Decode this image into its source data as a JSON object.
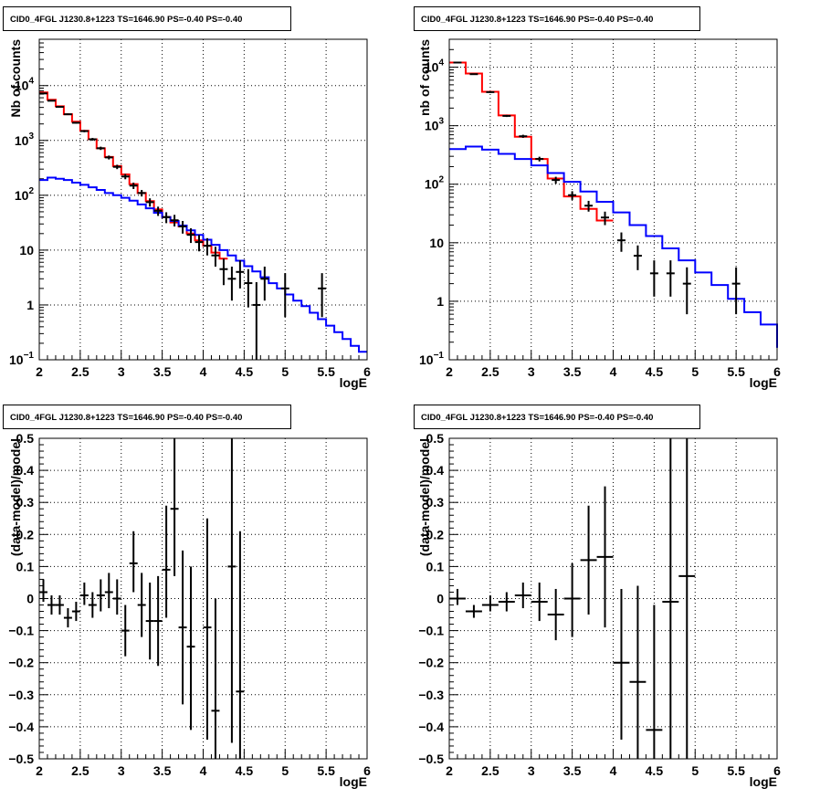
{
  "chart_data": [
    {
      "type": "line",
      "title": "CID0_4FGL J1230.8+1223 TS=1646.90 PS=-0.40 PS=-0.40",
      "xlabel": "logE",
      "ylabel": "Nb of counts",
      "xlim": [
        2,
        6
      ],
      "ylim": [
        0.1,
        70000
      ],
      "ylog": true,
      "grid": true,
      "x_ticks": [
        "2",
        "2.5",
        "3",
        "3.5",
        "4",
        "4.5",
        "5",
        "5.5",
        "6"
      ],
      "y_ticks": [
        {
          "v": 0.1,
          "base": "10",
          "exp": "−1"
        },
        {
          "v": 1,
          "label": "1"
        },
        {
          "v": 10,
          "label": "10"
        },
        {
          "v": 100,
          "base": "10",
          "exp": "2"
        },
        {
          "v": 1000,
          "base": "10",
          "exp": "3"
        },
        {
          "v": 10000,
          "base": "10",
          "exp": "4"
        }
      ],
      "series": [
        {
          "color": "#ff0000",
          "style": "step",
          "edges": [
            2.0,
            2.1,
            2.2,
            2.3,
            2.4,
            2.5,
            2.6,
            2.7,
            2.8,
            2.9,
            3.0,
            3.1,
            3.2,
            3.3,
            3.4,
            3.5,
            3.6,
            3.7,
            3.8,
            3.9,
            4.0,
            4.1,
            4.2,
            4.3
          ],
          "values": [
            7500,
            5500,
            4200,
            3000,
            2200,
            1500,
            1050,
            720,
            500,
            340,
            240,
            160,
            110,
            78,
            55,
            40,
            32,
            27,
            20,
            15,
            12,
            9,
            7
          ]
        },
        {
          "color": "#0000ff",
          "style": "step",
          "edges": [
            2.0,
            2.1,
            2.2,
            2.3,
            2.4,
            2.5,
            2.6,
            2.7,
            2.8,
            2.9,
            3.0,
            3.1,
            3.2,
            3.3,
            3.4,
            3.5,
            3.6,
            3.7,
            3.8,
            3.9,
            4.0,
            4.1,
            4.2,
            4.3,
            4.4,
            4.5,
            4.6,
            4.7,
            4.8,
            4.9,
            5.0,
            5.1,
            5.2,
            5.3,
            5.4,
            5.5,
            5.6,
            5.7,
            5.8,
            5.9,
            6.0
          ],
          "values": [
            190,
            210,
            200,
            190,
            170,
            155,
            140,
            125,
            110,
            100,
            90,
            80,
            68,
            58,
            48,
            40,
            34,
            28,
            23,
            19,
            15.5,
            12.5,
            10,
            8,
            6.4,
            5.1,
            4.1,
            3.2,
            2.5,
            2.0,
            1.55,
            1.2,
            0.95,
            0.72,
            0.55,
            0.42,
            0.32,
            0.24,
            0.18,
            0.14
          ]
        },
        {
          "color": "#000000",
          "style": "points",
          "points": [
            {
              "x": 2.05,
              "y": 7200,
              "lo": 7050,
              "hi": 7350
            },
            {
              "x": 2.15,
              "y": 5300,
              "lo": 5180,
              "hi": 5420
            },
            {
              "x": 2.25,
              "y": 4100,
              "lo": 3990,
              "hi": 4210
            },
            {
              "x": 2.35,
              "y": 3000,
              "lo": 2900,
              "hi": 3100
            },
            {
              "x": 2.45,
              "y": 2100,
              "lo": 2020,
              "hi": 2180
            },
            {
              "x": 2.55,
              "y": 1480,
              "lo": 1410,
              "hi": 1550
            },
            {
              "x": 2.65,
              "y": 1050,
              "lo": 990,
              "hi": 1110
            },
            {
              "x": 2.75,
              "y": 720,
              "lo": 670,
              "hi": 770
            },
            {
              "x": 2.85,
              "y": 490,
              "lo": 450,
              "hi": 530
            },
            {
              "x": 2.95,
              "y": 330,
              "lo": 300,
              "hi": 360
            },
            {
              "x": 3.05,
              "y": 220,
              "lo": 196,
              "hi": 244
            },
            {
              "x": 3.15,
              "y": 150,
              "lo": 130,
              "hi": 170
            },
            {
              "x": 3.25,
              "y": 110,
              "lo": 95,
              "hi": 125
            },
            {
              "x": 3.35,
              "y": 75,
              "lo": 62,
              "hi": 88
            },
            {
              "x": 3.45,
              "y": 52,
              "lo": 42,
              "hi": 62
            },
            {
              "x": 3.55,
              "y": 40,
              "lo": 31,
              "hi": 49
            },
            {
              "x": 3.65,
              "y": 35,
              "lo": 27,
              "hi": 44
            },
            {
              "x": 3.75,
              "y": 27,
              "lo": 20,
              "hi": 34
            },
            {
              "x": 3.85,
              "y": 19,
              "lo": 13.5,
              "hi": 25
            },
            {
              "x": 3.95,
              "y": 14,
              "lo": 9.5,
              "hi": 19
            },
            {
              "x": 4.05,
              "y": 12,
              "lo": 8,
              "hi": 16.5
            },
            {
              "x": 4.15,
              "y": 8,
              "lo": 5,
              "hi": 11.5
            },
            {
              "x": 4.25,
              "y": 4.5,
              "lo": 2.3,
              "hi": 7
            },
            {
              "x": 4.35,
              "y": 3,
              "lo": 1.2,
              "hi": 5
            },
            {
              "x": 4.45,
              "y": 4,
              "lo": 2,
              "hi": 6.5
            },
            {
              "x": 4.55,
              "y": 2.5,
              "lo": 0.9,
              "hi": 4.5
            },
            {
              "x": 4.65,
              "y": 1,
              "lo": 0.1,
              "hi": 2.6
            },
            {
              "x": 4.75,
              "y": 3,
              "lo": 1.2,
              "hi": 5
            },
            {
              "x": 5.0,
              "y": 2,
              "lo": 0.6,
              "hi": 3.8
            },
            {
              "x": 5.45,
              "y": 2,
              "lo": 0.6,
              "hi": 3.8
            }
          ]
        }
      ]
    },
    {
      "type": "line",
      "title": "CID0_4FGL J1230.8+1223 TS=1646.90 PS=-0.40 PS=-0.40",
      "xlabel": "logE",
      "ylabel": "nb of counts",
      "xlim": [
        2,
        6
      ],
      "ylim": [
        0.1,
        30000
      ],
      "ylog": true,
      "grid": true,
      "x_ticks": [
        "2",
        "2.5",
        "3",
        "3.5",
        "4",
        "4.5",
        "5",
        "5.5",
        "6"
      ],
      "y_ticks": [
        {
          "v": 0.1,
          "base": "10",
          "exp": "−1"
        },
        {
          "v": 1,
          "label": "1"
        },
        {
          "v": 10,
          "label": "10"
        },
        {
          "v": 100,
          "base": "10",
          "exp": "2"
        },
        {
          "v": 1000,
          "base": "10",
          "exp": "3"
        },
        {
          "v": 10000,
          "base": "10",
          "exp": "4"
        }
      ],
      "series": [
        {
          "color": "#ff0000",
          "style": "step",
          "edges": [
            2.0,
            2.2,
            2.4,
            2.6,
            2.8,
            3.0,
            3.2,
            3.4,
            3.6,
            3.8,
            4.0
          ],
          "values": [
            12000,
            7800,
            3800,
            1500,
            650,
            270,
            125,
            62,
            38,
            24
          ]
        },
        {
          "color": "#0000ff",
          "style": "step",
          "edges": [
            2.0,
            2.2,
            2.4,
            2.6,
            2.8,
            3.0,
            3.2,
            3.4,
            3.6,
            3.8,
            4.0,
            4.2,
            4.4,
            4.6,
            4.8,
            5.0,
            5.2,
            5.4,
            5.6,
            5.8,
            6.0
          ],
          "values": [
            400,
            440,
            390,
            330,
            270,
            210,
            155,
            110,
            75,
            50,
            33,
            20,
            13,
            8,
            5,
            3.1,
            1.9,
            1.1,
            0.65,
            0.4,
            0.16
          ]
        },
        {
          "color": "#000000",
          "style": "points",
          "points": [
            {
              "x": 2.1,
              "y": 12000,
              "lo": 11800,
              "hi": 12200
            },
            {
              "x": 2.3,
              "y": 7600,
              "lo": 7450,
              "hi": 7750
            },
            {
              "x": 2.5,
              "y": 3750,
              "lo": 3650,
              "hi": 3850
            },
            {
              "x": 2.7,
              "y": 1470,
              "lo": 1410,
              "hi": 1530
            },
            {
              "x": 2.9,
              "y": 660,
              "lo": 620,
              "hi": 700
            },
            {
              "x": 3.1,
              "y": 270,
              "lo": 245,
              "hi": 295
            },
            {
              "x": 3.3,
              "y": 118,
              "lo": 102,
              "hi": 134
            },
            {
              "x": 3.5,
              "y": 65,
              "lo": 54,
              "hi": 76
            },
            {
              "x": 3.7,
              "y": 43,
              "lo": 34,
              "hi": 52
            },
            {
              "x": 3.9,
              "y": 27,
              "lo": 20,
              "hi": 34
            },
            {
              "x": 4.1,
              "y": 11,
              "lo": 7,
              "hi": 15
            },
            {
              "x": 4.3,
              "y": 6,
              "lo": 3.4,
              "hi": 9
            },
            {
              "x": 4.5,
              "y": 3,
              "lo": 1.2,
              "hi": 5
            },
            {
              "x": 4.7,
              "y": 3,
              "lo": 1.2,
              "hi": 5
            },
            {
              "x": 4.9,
              "y": 2,
              "lo": 0.6,
              "hi": 3.8
            },
            {
              "x": 5.5,
              "y": 2,
              "lo": 0.6,
              "hi": 3.8
            }
          ]
        }
      ]
    },
    {
      "type": "scatter",
      "title": "CID0_4FGL J1230.8+1223 TS=1646.90 PS=-0.40 PS=-0.40",
      "xlabel": "logE",
      "ylabel": "(data-model)/model",
      "xlim": [
        2,
        6
      ],
      "ylim": [
        -0.5,
        0.5
      ],
      "ylog": false,
      "grid": true,
      "x_ticks": [
        "2",
        "2.5",
        "3",
        "3.5",
        "4",
        "4.5",
        "5",
        "5.5",
        "6"
      ],
      "y_ticks": [
        {
          "v": -0.5,
          "label": "−0.5"
        },
        {
          "v": -0.4,
          "label": "−0.4"
        },
        {
          "v": -0.3,
          "label": "−0.3"
        },
        {
          "v": -0.2,
          "label": "−0.2"
        },
        {
          "v": -0.1,
          "label": "−0.1"
        },
        {
          "v": 0,
          "label": "0"
        },
        {
          "v": 0.1,
          "label": "0.1"
        },
        {
          "v": 0.2,
          "label": "0.2"
        },
        {
          "v": 0.3,
          "label": "0.3"
        },
        {
          "v": 0.4,
          "label": "0.4"
        },
        {
          "v": 0.5,
          "label": "0.5"
        }
      ],
      "series": [
        {
          "color": "#000000",
          "style": "points",
          "xhalf": 0.05,
          "points": [
            {
              "x": 2.05,
              "y": 0.02,
              "lo": -0.01,
              "hi": 0.06
            },
            {
              "x": 2.15,
              "y": -0.02,
              "lo": -0.05,
              "hi": 0.01
            },
            {
              "x": 2.25,
              "y": -0.02,
              "lo": -0.05,
              "hi": 0.01
            },
            {
              "x": 2.35,
              "y": -0.06,
              "lo": -0.09,
              "hi": -0.03
            },
            {
              "x": 2.45,
              "y": -0.04,
              "lo": -0.07,
              "hi": -0.01
            },
            {
              "x": 2.55,
              "y": 0.01,
              "lo": -0.02,
              "hi": 0.05
            },
            {
              "x": 2.65,
              "y": -0.02,
              "lo": -0.06,
              "hi": 0.02
            },
            {
              "x": 2.75,
              "y": 0.01,
              "lo": -0.04,
              "hi": 0.06
            },
            {
              "x": 2.85,
              "y": 0.02,
              "lo": -0.03,
              "hi": 0.08
            },
            {
              "x": 2.95,
              "y": 0.0,
              "lo": -0.05,
              "hi": 0.06
            },
            {
              "x": 3.05,
              "y": -0.1,
              "lo": -0.18,
              "hi": -0.02
            },
            {
              "x": 3.15,
              "y": 0.11,
              "lo": 0.02,
              "hi": 0.21
            },
            {
              "x": 3.25,
              "y": -0.02,
              "lo": -0.12,
              "hi": 0.08
            },
            {
              "x": 3.35,
              "y": -0.07,
              "lo": -0.19,
              "hi": 0.05
            },
            {
              "x": 3.45,
              "y": -0.07,
              "lo": -0.21,
              "hi": 0.07
            },
            {
              "x": 3.55,
              "y": 0.09,
              "lo": -0.06,
              "hi": 0.29
            },
            {
              "x": 3.65,
              "y": 0.28,
              "lo": 0.07,
              "hi": 0.5
            },
            {
              "x": 3.75,
              "y": -0.09,
              "lo": -0.33,
              "hi": 0.15
            },
            {
              "x": 3.85,
              "y": -0.15,
              "lo": -0.41,
              "hi": 0.1
            },
            {
              "x": 4.05,
              "y": -0.09,
              "lo": -0.44,
              "hi": 0.25
            },
            {
              "x": 4.15,
              "y": -0.35,
              "lo": -0.5,
              "hi": 0.0
            },
            {
              "x": 4.35,
              "y": 0.1,
              "lo": -0.45,
              "hi": 0.5
            },
            {
              "x": 4.45,
              "y": -0.29,
              "lo": -0.5,
              "hi": 0.21
            }
          ]
        }
      ]
    },
    {
      "type": "scatter",
      "title": "CID0_4FGL J1230.8+1223 TS=1646.90 PS=-0.40 PS=-0.40",
      "xlabel": "logE",
      "ylabel": "(data-model)/model",
      "xlim": [
        2,
        6
      ],
      "ylim": [
        -0.5,
        0.5
      ],
      "ylog": false,
      "grid": true,
      "x_ticks": [
        "2",
        "2.5",
        "3",
        "3.5",
        "4",
        "4.5",
        "5",
        "5.5",
        "6"
      ],
      "y_ticks": [
        {
          "v": -0.5,
          "label": "−0.5"
        },
        {
          "v": -0.4,
          "label": "−0.4"
        },
        {
          "v": -0.3,
          "label": "−0.3"
        },
        {
          "v": -0.2,
          "label": "−0.2"
        },
        {
          "v": -0.1,
          "label": "−0.1"
        },
        {
          "v": 0,
          "label": "0"
        },
        {
          "v": 0.1,
          "label": "0.1"
        },
        {
          "v": 0.2,
          "label": "0.2"
        },
        {
          "v": 0.3,
          "label": "0.3"
        },
        {
          "v": 0.4,
          "label": "0.4"
        },
        {
          "v": 0.5,
          "label": "0.5"
        }
      ],
      "series": [
        {
          "color": "#000000",
          "style": "points",
          "xhalf": 0.1,
          "points": [
            {
              "x": 2.1,
              "y": 0.0,
              "lo": -0.02,
              "hi": 0.03
            },
            {
              "x": 2.3,
              "y": -0.04,
              "lo": -0.06,
              "hi": -0.02
            },
            {
              "x": 2.5,
              "y": -0.02,
              "lo": -0.04,
              "hi": 0.01
            },
            {
              "x": 2.7,
              "y": -0.01,
              "lo": -0.04,
              "hi": 0.02
            },
            {
              "x": 2.9,
              "y": 0.01,
              "lo": -0.03,
              "hi": 0.05
            },
            {
              "x": 3.1,
              "y": -0.01,
              "lo": -0.07,
              "hi": 0.05
            },
            {
              "x": 3.3,
              "y": -0.05,
              "lo": -0.13,
              "hi": 0.03
            },
            {
              "x": 3.5,
              "y": 0.0,
              "lo": -0.12,
              "hi": 0.11
            },
            {
              "x": 3.7,
              "y": 0.12,
              "lo": -0.05,
              "hi": 0.29
            },
            {
              "x": 3.9,
              "y": 0.13,
              "lo": -0.09,
              "hi": 0.35
            },
            {
              "x": 4.1,
              "y": -0.2,
              "lo": -0.44,
              "hi": 0.03
            },
            {
              "x": 4.3,
              "y": -0.26,
              "lo": -0.5,
              "hi": 0.04
            },
            {
              "x": 4.5,
              "y": -0.41,
              "lo": -0.5,
              "hi": -0.02
            },
            {
              "x": 4.7,
              "y": -0.01,
              "lo": -0.5,
              "hi": 0.5
            },
            {
              "x": 4.9,
              "y": 0.07,
              "lo": -0.5,
              "hi": 0.5
            }
          ]
        }
      ]
    }
  ]
}
